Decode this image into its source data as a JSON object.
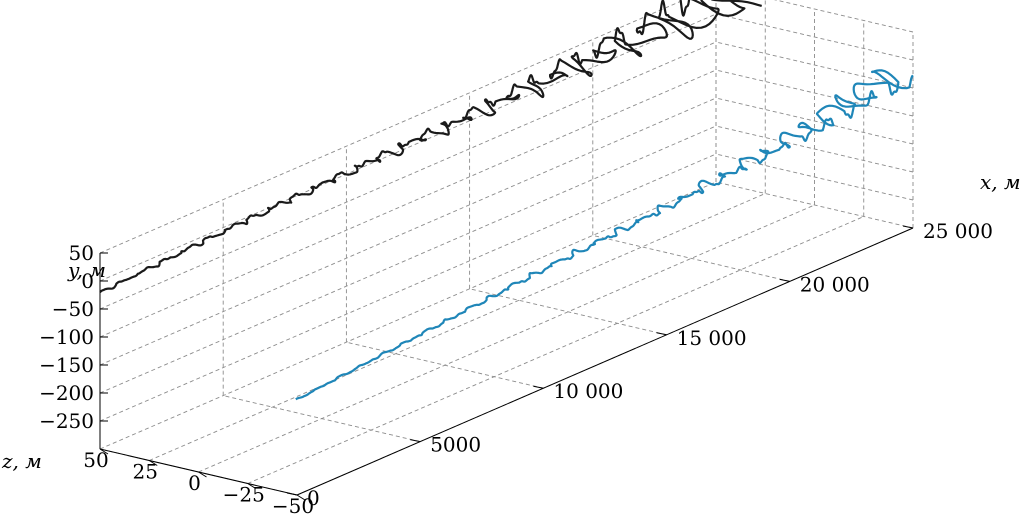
{
  "chart_data": {
    "type": "line3d",
    "axis_labels": {
      "x": "x, м",
      "y": "y, м",
      "z": "z, м"
    },
    "x_ticks": [
      "0",
      "5000",
      "10 000",
      "15 000",
      "20 000",
      "25 000"
    ],
    "x_tick_values": [
      0,
      5000,
      10000,
      15000,
      20000,
      25000
    ],
    "y_ticks": [
      "50",
      "0",
      "−50",
      "−100",
      "−150",
      "−200",
      "−250"
    ],
    "y_tick_values": [
      50,
      0,
      -50,
      -100,
      -150,
      -200,
      -250
    ],
    "z_ticks": [
      "50",
      "25",
      "0",
      "−25",
      "−50"
    ],
    "z_tick_values": [
      50,
      25,
      0,
      -25,
      -50
    ],
    "xlim": [
      0,
      25000
    ],
    "ylim": [
      -300,
      50
    ],
    "zlim": [
      -50,
      50
    ],
    "grid": true,
    "series": [
      {
        "color": "#1a1a1a",
        "description_points": [
          {
            "x": 0,
            "y": -20,
            "z": 50,
            "amp": 1
          },
          {
            "x": 5000,
            "y": -5,
            "z": 50,
            "amp": 2
          },
          {
            "x": 10000,
            "y": 5,
            "z": 50,
            "amp": 3
          },
          {
            "x": 15000,
            "y": 15,
            "z": 50,
            "amp": 6
          },
          {
            "x": 20000,
            "y": 30,
            "z": 50,
            "amp": 12
          },
          {
            "x": 25000,
            "y": 50,
            "z": 50,
            "amp": 22
          }
        ]
      },
      {
        "color": "#1f86b8",
        "description_points": [
          {
            "x": 0,
            "y": -130,
            "z": -50,
            "amp": 0.5
          },
          {
            "x": 5000,
            "y": -110,
            "z": -50,
            "amp": 1
          },
          {
            "x": 10000,
            "y": -90,
            "z": -50,
            "amp": 2
          },
          {
            "x": 15000,
            "y": -75,
            "z": -50,
            "amp": 3
          },
          {
            "x": 20000,
            "y": -55,
            "z": -50,
            "amp": 6
          },
          {
            "x": 25000,
            "y": -30,
            "z": -50,
            "amp": 14
          }
        ]
      }
    ]
  }
}
